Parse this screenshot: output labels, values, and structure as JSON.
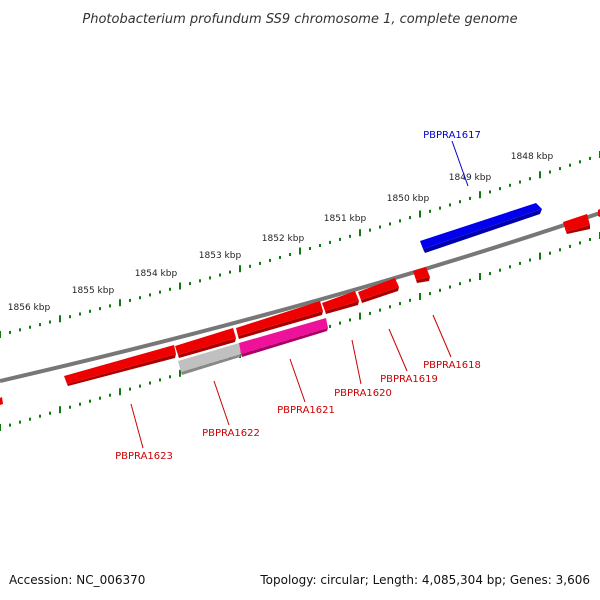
{
  "title": "Photobacterium profundum SS9 chromosome 1, complete genome",
  "ticks": [
    {
      "label": "1848 kbp"
    },
    {
      "label": "1849 kbp"
    },
    {
      "label": "1850 kbp"
    },
    {
      "label": "1851 kbp"
    },
    {
      "label": "1852 kbp"
    },
    {
      "label": "1853 kbp"
    },
    {
      "label": "1854 kbp"
    },
    {
      "label": "1855 kbp"
    },
    {
      "label": "1856 kbp"
    }
  ],
  "genes": [
    {
      "name": "PBPRA1617",
      "strand": "forward",
      "color": "#0000cc"
    },
    {
      "name": "PBPRA1618",
      "strand": "reverse",
      "color": "#cc0000"
    },
    {
      "name": "PBPRA1619",
      "strand": "reverse",
      "color": "#cc0000"
    },
    {
      "name": "PBPRA1620",
      "strand": "reverse",
      "color": "#cc0000"
    },
    {
      "name": "PBPRA1621",
      "strand": "reverse",
      "color": "#cc0000"
    },
    {
      "name": "PBPRA1622",
      "strand": "reverse",
      "color": "#cc0000"
    },
    {
      "name": "PBPRA1623",
      "strand": "reverse",
      "color": "#cc0000"
    }
  ],
  "colors": {
    "forward_gene": "#0000ff",
    "reverse_gene": "#ee0000",
    "highlight_gene": "#ee1199",
    "gray_feature": "#bbbbbb",
    "backbone": "#777777",
    "tick_marks": "#117711"
  },
  "footer": {
    "accession": "Accession: NC_006370",
    "summary": "Topology: circular; Length: 4,085,304 bp; Genes: 3,606"
  }
}
